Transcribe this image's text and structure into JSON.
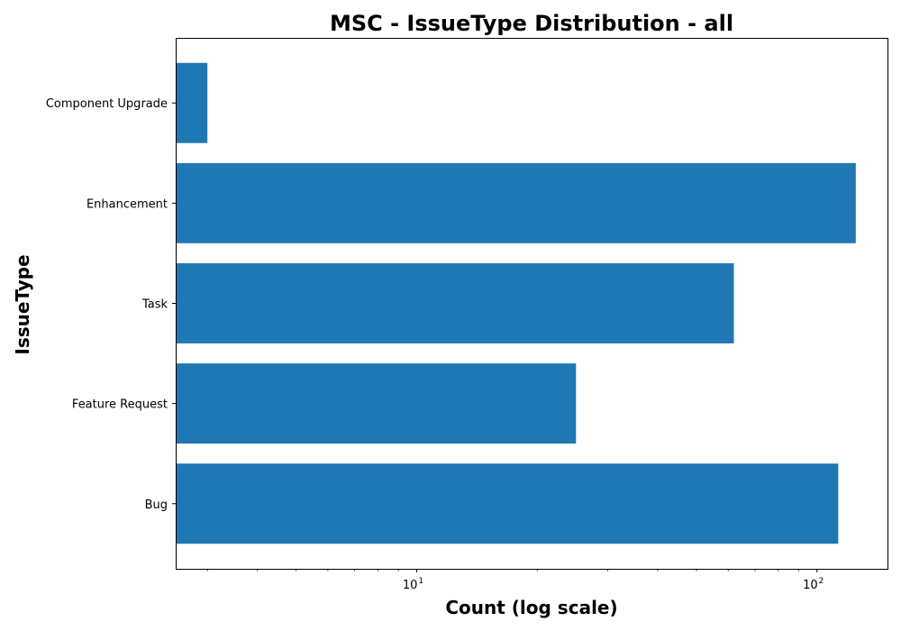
{
  "chart_data": {
    "type": "bar",
    "orientation": "horizontal",
    "title": "MSC - IssueType Distribution - all",
    "xlabel": "Count (log scale)",
    "ylabel": "IssueType",
    "x_scale": "log",
    "xlim": [
      2.5,
      150
    ],
    "x_ticks": [
      {
        "value": 10,
        "base": "10",
        "exp": "1"
      },
      {
        "value": 100,
        "base": "10",
        "exp": "2"
      }
    ],
    "categories": [
      "Bug",
      "Feature Request",
      "Task",
      "Enhancement",
      "Component Upgrade"
    ],
    "values": [
      113,
      25,
      62,
      125,
      3
    ],
    "bar_color": "#1f77b4",
    "grid": false,
    "legend": "none"
  }
}
